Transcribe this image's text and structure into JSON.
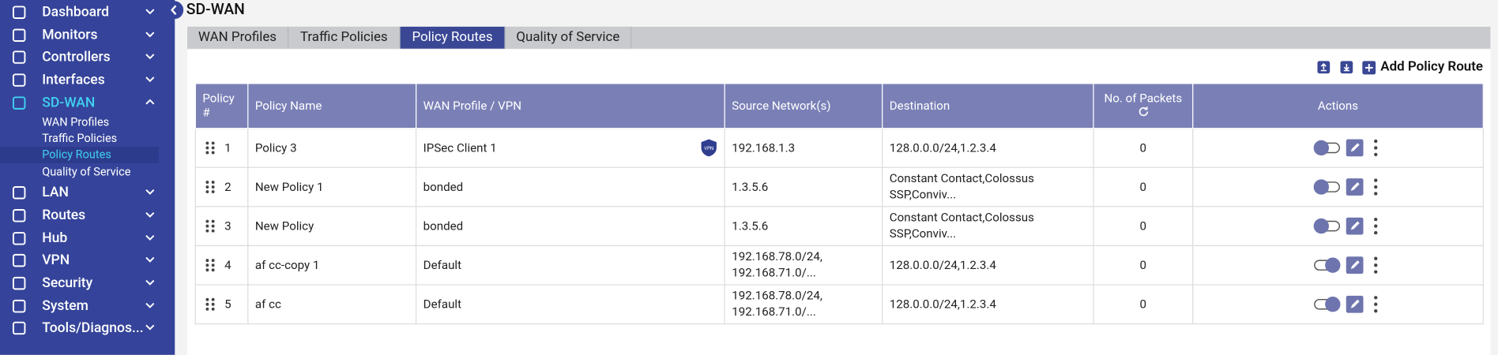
{
  "sidebar": {
    "items": [
      {
        "label": "Dashboard",
        "open": false
      },
      {
        "label": "Monitors",
        "open": false
      },
      {
        "label": "Controllers",
        "open": false
      },
      {
        "label": "Interfaces",
        "open": false
      },
      {
        "label": "SD-WAN",
        "open": true,
        "active": true,
        "children": [
          "WAN Profiles",
          "Traffic Policies",
          "Policy Routes",
          "Quality of Service"
        ],
        "active_child": 2
      },
      {
        "label": "LAN",
        "open": false
      },
      {
        "label": "Routes",
        "open": false
      },
      {
        "label": "Hub",
        "open": false
      },
      {
        "label": "VPN",
        "open": false
      },
      {
        "label": "Security",
        "open": false
      },
      {
        "label": "System",
        "open": false
      },
      {
        "label": "Tools/Diagnos...",
        "open": false
      }
    ]
  },
  "header": {
    "title": "SD-WAN"
  },
  "tabs": {
    "items": [
      "WAN Profiles",
      "Traffic Policies",
      "Policy Routes",
      "Quality of Service"
    ],
    "active": 2
  },
  "toolbar": {
    "add_label": "Add Policy Route"
  },
  "table": {
    "columns": [
      "Policy #",
      "Policy Name",
      "WAN Profile / VPN",
      "Source Network(s)",
      "Destination",
      "No. of Packets",
      "Actions"
    ],
    "rows": [
      {
        "num": 1,
        "name": "Policy 3",
        "wan": "IPSec Client 1",
        "vpn": true,
        "source": [
          "192.168.1.3"
        ],
        "destination": "128.0.0.0/24,1.2.3.4",
        "packets": 0,
        "enabled": false
      },
      {
        "num": 2,
        "name": "New Policy 1",
        "wan": "bonded",
        "vpn": false,
        "source": [
          "1.3.5.6"
        ],
        "destination": "Constant Contact,Colossus SSP,Conviv...",
        "packets": 0,
        "enabled": false
      },
      {
        "num": 3,
        "name": "New Policy",
        "wan": "bonded",
        "vpn": false,
        "source": [
          "1.3.5.6"
        ],
        "destination": "Constant Contact,Colossus SSP,Conviv...",
        "packets": 0,
        "enabled": false
      },
      {
        "num": 4,
        "name": "af cc-copy 1",
        "wan": "Default",
        "vpn": false,
        "source": [
          "192.168.78.0/24,",
          "192.168.71.0/..."
        ],
        "destination": "128.0.0.0/24,1.2.3.4",
        "packets": 0,
        "enabled": true
      },
      {
        "num": 5,
        "name": "af cc",
        "wan": "Default",
        "vpn": false,
        "source": [
          "192.168.78.0/24,",
          "192.168.71.0/..."
        ],
        "destination": "128.0.0.0/24,1.2.3.4",
        "packets": 0,
        "enabled": true
      }
    ]
  }
}
